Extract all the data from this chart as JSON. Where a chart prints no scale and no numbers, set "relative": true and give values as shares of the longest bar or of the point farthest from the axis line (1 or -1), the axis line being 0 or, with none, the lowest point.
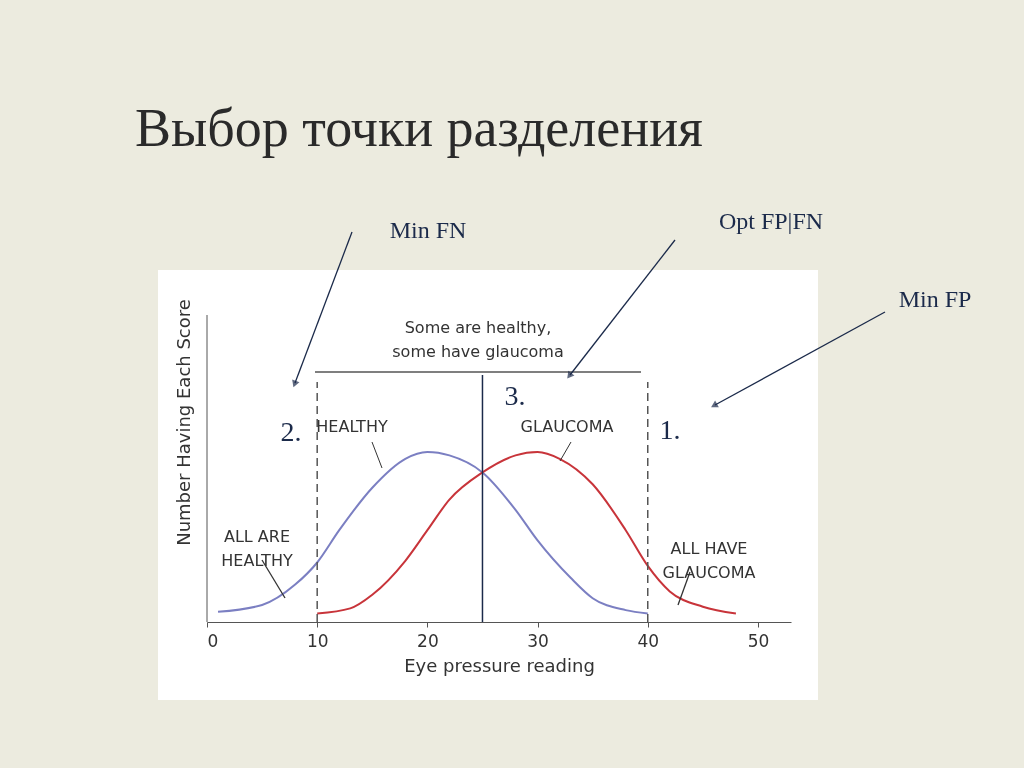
{
  "chart_data": {
    "type": "line",
    "title": "Выбор точки разделения",
    "xlabel": "Eye pressure reading",
    "ylabel": "Number Having Each Score",
    "relative": true,
    "xlim": [
      0,
      53
    ],
    "xticks": [
      0,
      10,
      20,
      30,
      40,
      50
    ],
    "grid": false,
    "marker": "none",
    "line_style": "solid",
    "series": [
      {
        "name": "HEALTHY",
        "color": "#7b7fc2",
        "x": [
          1,
          5,
          8,
          10,
          12,
          15,
          18,
          20,
          22,
          25,
          28,
          30,
          33,
          35,
          38,
          40
        ],
        "values": [
          0.06,
          0.1,
          0.22,
          0.35,
          0.54,
          0.79,
          0.96,
          1.0,
          0.98,
          0.88,
          0.66,
          0.48,
          0.26,
          0.14,
          0.07,
          0.05
        ]
      },
      {
        "name": "GLAUCOMA",
        "color": "#c8343a",
        "x": [
          10,
          13,
          15,
          18,
          20,
          22,
          25,
          28,
          30,
          32,
          35,
          38,
          40,
          42,
          45,
          48
        ],
        "values": [
          0.05,
          0.08,
          0.16,
          0.36,
          0.54,
          0.72,
          0.88,
          0.98,
          1.0,
          0.96,
          0.81,
          0.54,
          0.33,
          0.18,
          0.09,
          0.05
        ]
      }
    ],
    "ref_lines": [
      {
        "axis": "x",
        "value": 10,
        "color": "#555555",
        "line_style": "dashed"
      },
      {
        "axis": "x",
        "value": 25,
        "color": "#1b2a4a",
        "line_style": "solid"
      },
      {
        "axis": "x",
        "value": 40,
        "color": "#555555",
        "line_style": "dashed"
      }
    ],
    "annotations": [
      "Some are healthy,\nsome have glaucoma",
      "ALL ARE\nHEALTHY",
      "ALL HAVE\nGLAUCOMA",
      "Min FN",
      "Opt FP|FN",
      "Min FP",
      "2.",
      "3.",
      "1."
    ]
  }
}
